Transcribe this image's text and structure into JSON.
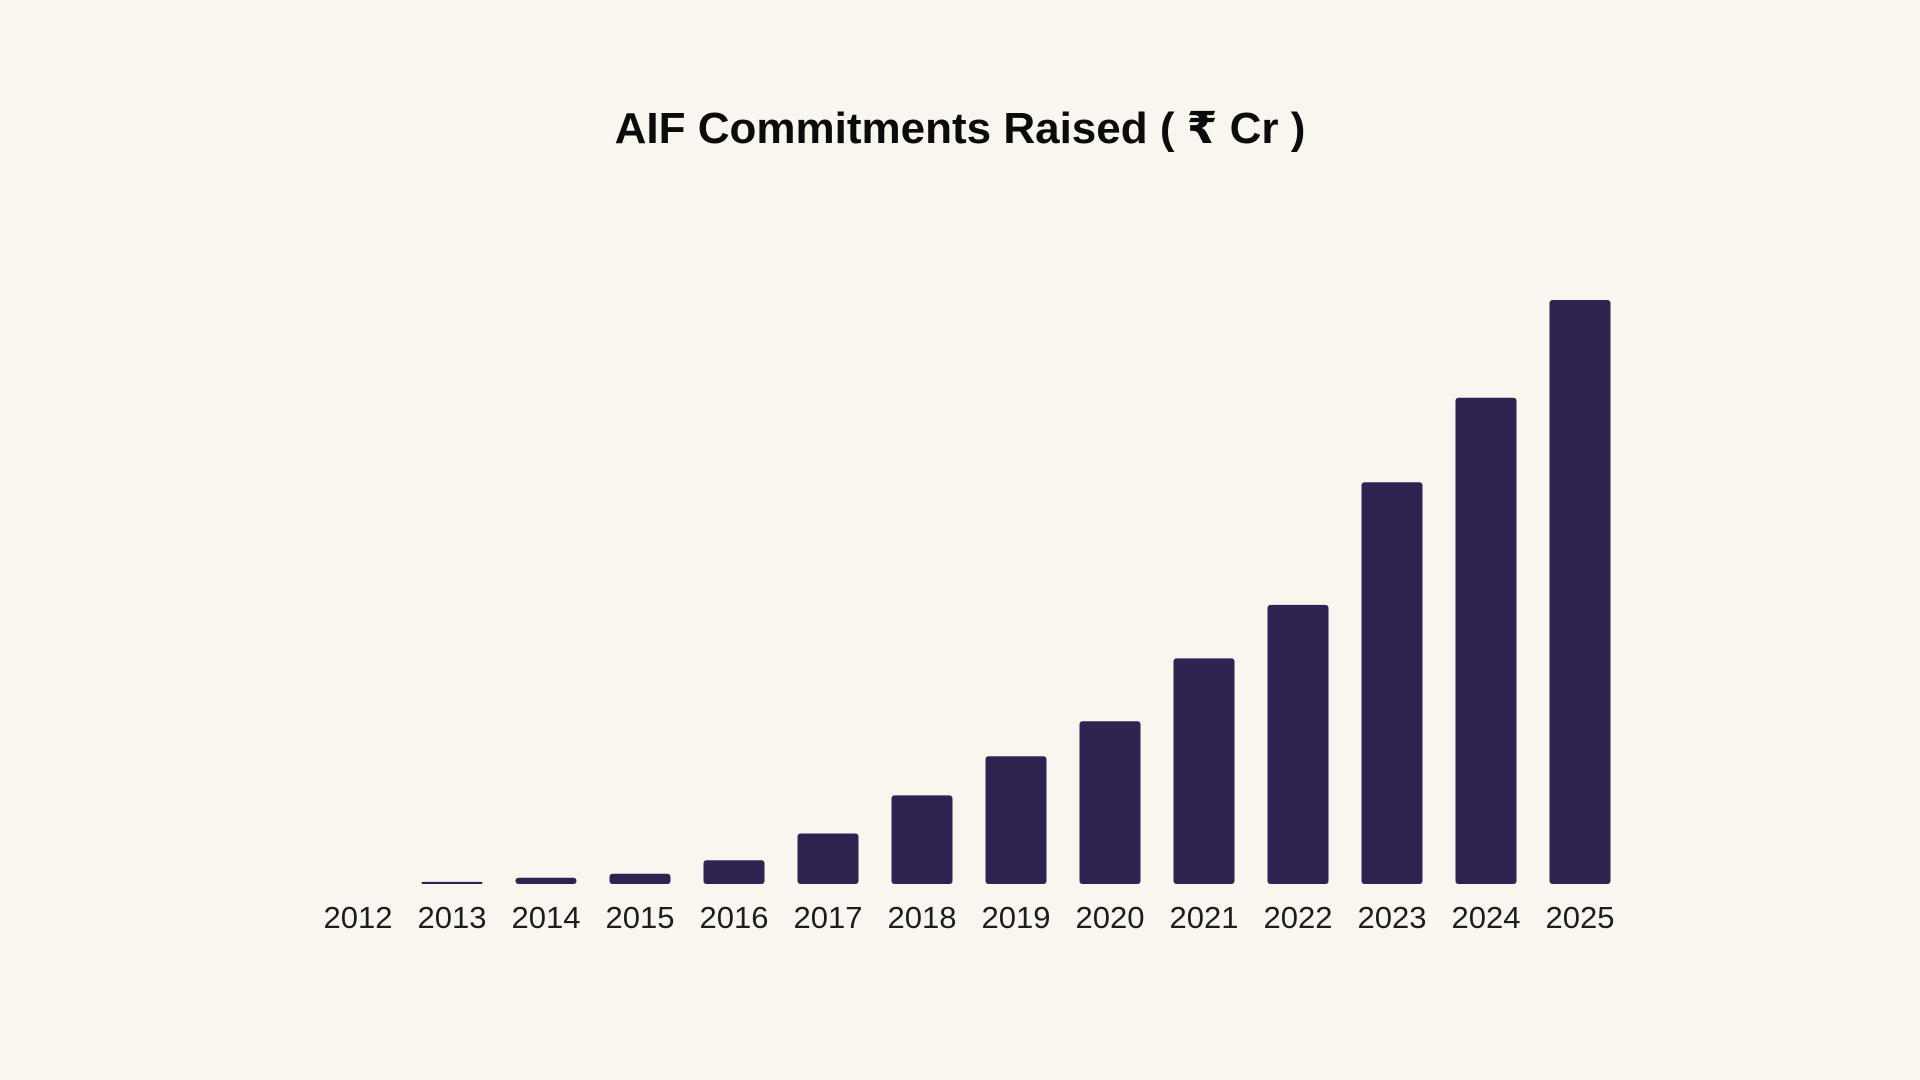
{
  "chart_data": {
    "type": "bar",
    "title": "AIF Commitments Raised ( ₹ Cr )",
    "xlabel": "",
    "ylabel": "",
    "categories": [
      "2012",
      "2013",
      "2014",
      "2015",
      "2016",
      "2017",
      "2018",
      "2019",
      "2020",
      "2021",
      "2022",
      "2023",
      "2024",
      "2025"
    ],
    "values": [
      0,
      2000,
      6000,
      10000,
      23000,
      49000,
      86000,
      124000,
      158000,
      219000,
      271000,
      390000,
      472000,
      567000
    ],
    "ylim": [
      0,
      567000
    ],
    "grid": false,
    "legend": "none",
    "colors": {
      "bar": "#2f2352",
      "background": "#f9f6f0",
      "text": "#1d1d1d"
    }
  }
}
